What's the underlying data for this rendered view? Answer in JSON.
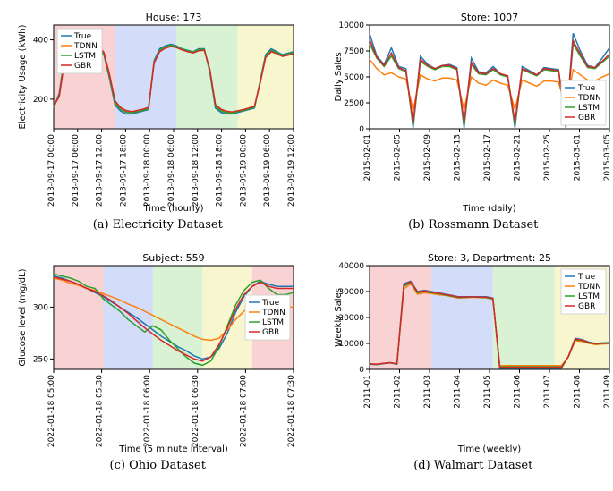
{
  "legend_labels": [
    "True",
    "TDNN",
    "LSTM",
    "GBR"
  ],
  "series_colors": {
    "True": "#1f77b4",
    "TDNN": "#ff7f0e",
    "LSTM": "#2ca02c",
    "GBR": "#d62728"
  },
  "band_colors": [
    "#f9d3d3",
    "#d3dcf9",
    "#d8f2d3",
    "#f7f6cf"
  ],
  "panels": {
    "a": {
      "caption": "(a) Electricity Dataset",
      "title": "House: 173",
      "xlabel": "Time (hourly)",
      "ylabel": "Electricity Usage (kWh)",
      "ylim": [
        100,
        450
      ],
      "yticks": [
        200,
        400
      ],
      "xticks": [
        "2013-09-17 00:00",
        "2013-09-17 06:00",
        "2013-09-17 12:00",
        "2013-09-17 18:00",
        "2013-09-18 00:00",
        "2013-09-18 06:00",
        "2013-09-18 12:00",
        "2013-09-18 18:00",
        "2013-09-19 00:00",
        "2013-09-19 06:00",
        "2013-09-19 12:00"
      ],
      "n": 44,
      "bands": [
        [
          0,
          11
        ],
        [
          11,
          22
        ],
        [
          22,
          33
        ],
        [
          33,
          44
        ]
      ],
      "legend_pos": "top-left",
      "series": {
        "True": [
          170,
          220,
          350,
          400,
          410,
          400,
          390,
          380,
          370,
          350,
          270,
          180,
          160,
          150,
          150,
          155,
          160,
          165,
          330,
          370,
          380,
          385,
          380,
          370,
          365,
          360,
          370,
          370,
          290,
          170,
          155,
          150,
          150,
          155,
          160,
          165,
          170,
          260,
          350,
          370,
          360,
          350,
          355,
          360
        ],
        "TDNN": [
          175,
          210,
          340,
          395,
          415,
          405,
          395,
          385,
          378,
          355,
          280,
          190,
          168,
          158,
          156,
          160,
          164,
          170,
          325,
          362,
          375,
          380,
          376,
          368,
          362,
          358,
          365,
          366,
          298,
          178,
          163,
          157,
          156,
          160,
          164,
          169,
          175,
          255,
          342,
          362,
          355,
          346,
          350,
          356
        ],
        "LSTM": [
          172,
          215,
          345,
          398,
          412,
          402,
          392,
          383,
          374,
          352,
          276,
          186,
          165,
          156,
          154,
          158,
          162,
          168,
          327,
          365,
          378,
          382,
          378,
          369,
          363,
          359,
          367,
          368,
          295,
          175,
          160,
          154,
          153,
          158,
          162,
          167,
          173,
          258,
          345,
          365,
          357,
          348,
          352,
          358
        ],
        "GBR": [
          178,
          208,
          335,
          390,
          418,
          408,
          398,
          388,
          380,
          358,
          285,
          194,
          172,
          162,
          158,
          162,
          166,
          172,
          322,
          360,
          372,
          378,
          374,
          366,
          360,
          356,
          363,
          365,
          300,
          182,
          166,
          159,
          157,
          161,
          165,
          170,
          177,
          252,
          340,
          360,
          353,
          344,
          348,
          354
        ]
      }
    },
    "b": {
      "caption": "(b) Rossmann Dataset",
      "title": "Store: 1007",
      "xlabel": "Time (daily)",
      "ylabel": "Daily Sales",
      "ylim": [
        0,
        10000
      ],
      "yticks": [
        0,
        2500,
        5000,
        7500,
        10000
      ],
      "xticks": [
        "2015-02-01",
        "2015-02-05",
        "2015-02-09",
        "2015-02-13",
        "2015-02-17",
        "2015-02-21",
        "2015-02-25",
        "2015-03-01",
        "2015-03-05"
      ],
      "n": 34,
      "bands": [],
      "legend_pos": "bottom-right",
      "series": {
        "True": [
          9200,
          7000,
          6200,
          7800,
          6000,
          5800,
          100,
          7000,
          6200,
          5800,
          6100,
          6200,
          5900,
          100,
          6800,
          5500,
          5400,
          6000,
          5300,
          5100,
          100,
          6000,
          5600,
          5200,
          5900,
          5800,
          5700,
          100,
          9200,
          7500,
          6100,
          5900,
          6800,
          7800
        ],
        "TDNN": [
          6700,
          5800,
          5200,
          5400,
          5000,
          4800,
          1800,
          5200,
          4800,
          4600,
          4900,
          4900,
          4700,
          1900,
          5000,
          4400,
          4200,
          4700,
          4400,
          4200,
          1900,
          4700,
          4400,
          4100,
          4600,
          4600,
          4500,
          1900,
          5700,
          5200,
          4700,
          4600,
          5000,
          5300
        ],
        "LSTM": [
          8200,
          6800,
          6000,
          7000,
          5800,
          5500,
          300,
          6500,
          6000,
          5700,
          6000,
          6000,
          5700,
          350,
          6200,
          5300,
          5200,
          5700,
          5200,
          5000,
          350,
          5700,
          5400,
          5100,
          5700,
          5600,
          5500,
          350,
          8200,
          7000,
          5900,
          5800,
          6400,
          7000
        ],
        "GBR": [
          8600,
          6900,
          6100,
          7300,
          5900,
          5600,
          600,
          6700,
          6100,
          5800,
          6100,
          6100,
          5800,
          650,
          6400,
          5400,
          5300,
          5800,
          5300,
          5100,
          650,
          5800,
          5500,
          5200,
          5800,
          5700,
          5600,
          650,
          8500,
          7200,
          6000,
          5900,
          6500,
          7200
        ]
      }
    },
    "c": {
      "caption": "(c) Ohio Dataset",
      "title": "Subject: 559",
      "xlabel": "Time (5 minute interval)",
      "ylabel": "Glucose level (mg/dL)",
      "ylim": [
        240,
        340
      ],
      "yticks": [
        250,
        300
      ],
      "xticks": [
        "2022-01-18 05:00",
        "2022-01-18 05:30",
        "2022-01-18 06:00",
        "2022-01-18 06:30",
        "2022-01-18 07:00",
        "2022-01-18 07:30"
      ],
      "n": 30,
      "bands": [
        [
          0,
          6
        ],
        [
          6,
          12
        ],
        [
          12,
          18
        ],
        [
          18,
          24
        ],
        [
          24,
          30
        ]
      ],
      "legend_pos": "mid-right",
      "series": {
        "True": [
          330,
          328,
          325,
          322,
          318,
          314,
          310,
          305,
          300,
          295,
          290,
          284,
          278,
          272,
          267,
          262,
          258,
          253,
          250,
          252,
          260,
          275,
          295,
          310,
          320,
          325,
          322,
          320,
          320,
          320
        ],
        "TDNN": [
          328,
          326,
          323,
          321,
          318,
          316,
          313,
          310,
          307,
          303,
          300,
          296,
          292,
          288,
          284,
          280,
          276,
          272,
          269,
          268,
          270,
          278,
          288,
          296,
          302,
          304,
          302,
          300,
          300,
          300
        ],
        "LSTM": [
          332,
          330,
          328,
          325,
          320,
          318,
          308,
          302,
          296,
          288,
          282,
          276,
          282,
          278,
          268,
          260,
          252,
          246,
          244,
          248,
          262,
          282,
          302,
          316,
          324,
          326,
          318,
          312,
          312,
          314
        ],
        "GBR": [
          329,
          327,
          325,
          322,
          318,
          315,
          311,
          306,
          300,
          294,
          287,
          280,
          274,
          268,
          263,
          258,
          254,
          250,
          248,
          252,
          264,
          280,
          298,
          312,
          320,
          324,
          320,
          318,
          318,
          318
        ]
      }
    },
    "d": {
      "caption": "(d) Walmart Dataset",
      "title": "Store: 3, Department: 25",
      "xlabel": "Time (weekly)",
      "ylabel": "Weekly Sales",
      "ylim": [
        0,
        40000
      ],
      "yticks": [
        0,
        10000,
        20000,
        30000,
        40000
      ],
      "xticks": [
        "2011-01",
        "2011-02",
        "2011-03",
        "2011-04",
        "2011-05",
        "2011-06",
        "2011-07",
        "2011-08",
        "2011-09"
      ],
      "n": 36,
      "bands": [
        [
          0,
          9
        ],
        [
          9,
          18
        ],
        [
          18,
          27
        ],
        [
          27,
          36
        ]
      ],
      "legend_pos": "top-right",
      "series": {
        "True": [
          2000,
          1800,
          2200,
          2500,
          2000,
          33000,
          34000,
          30000,
          30500,
          30000,
          29500,
          29000,
          28500,
          28000,
          28000,
          28000,
          28000,
          28000,
          27500,
          500,
          500,
          500,
          500,
          500,
          500,
          500,
          500,
          500,
          500,
          5000,
          12000,
          11500,
          10500,
          10000,
          10200,
          10300
        ],
        "TDNN": [
          2200,
          2000,
          2300,
          2600,
          2200,
          31000,
          33000,
          29000,
          29500,
          29200,
          28800,
          28500,
          28000,
          27500,
          27600,
          27800,
          27700,
          27600,
          27000,
          1500,
          1500,
          1500,
          1500,
          1500,
          1500,
          1500,
          1500,
          1500,
          1500,
          4700,
          11000,
          10800,
          10000,
          9600,
          9800,
          9900
        ],
        "LSTM": [
          2100,
          1900,
          2250,
          2550,
          2100,
          32000,
          33500,
          29500,
          30000,
          29600,
          29200,
          28700,
          28200,
          27700,
          27800,
          27900,
          27800,
          27700,
          27200,
          1000,
          1000,
          1000,
          1000,
          1000,
          1000,
          1000,
          1000,
          1000,
          1000,
          4900,
          11500,
          11100,
          10200,
          9800,
          10000,
          10100
        ],
        "GBR": [
          2150,
          1950,
          2300,
          2580,
          2150,
          32500,
          33800,
          29800,
          30200,
          29800,
          29400,
          28900,
          28400,
          27900,
          27900,
          27950,
          27900,
          27850,
          27300,
          800,
          800,
          800,
          800,
          800,
          800,
          800,
          800,
          800,
          800,
          4950,
          11700,
          11300,
          10300,
          9900,
          10100,
          10200
        ]
      }
    }
  }
}
